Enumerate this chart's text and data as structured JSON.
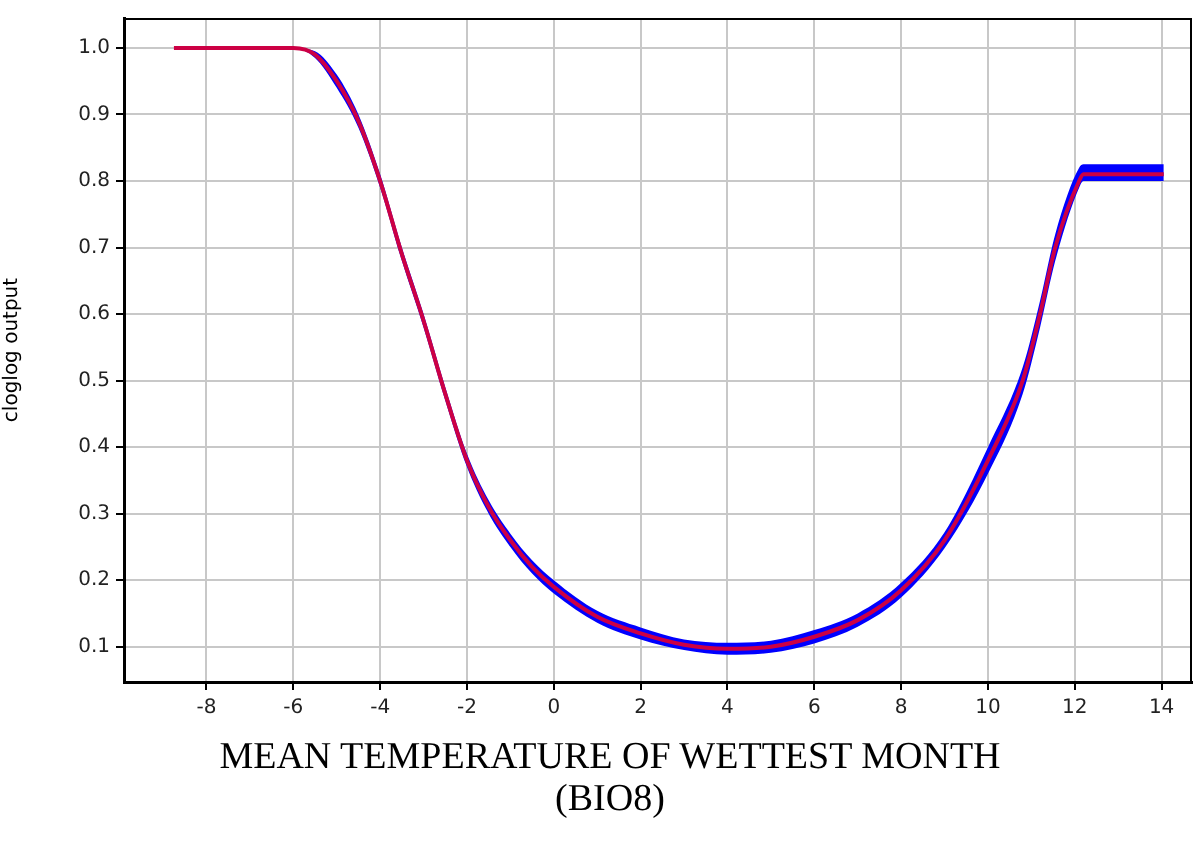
{
  "chart_data": {
    "type": "line",
    "xlabel": "MEAN TEMPERATURE OF WETTEST MONTH (BIO8)",
    "ylabel": "cloglog output",
    "xlim": [
      -9.9,
      14.7
    ],
    "ylim": [
      0.047,
      1.045
    ],
    "xticks": [
      -8,
      -6,
      -4,
      -2,
      0,
      2,
      4,
      6,
      8,
      10,
      12,
      14
    ],
    "yticks": [
      {
        "value": 0.1,
        "label": "0.1"
      },
      {
        "value": 0.2,
        "label": "0.2"
      },
      {
        "value": 0.3,
        "label": "0.3"
      },
      {
        "value": 0.4,
        "label": "0.4"
      },
      {
        "value": 0.5,
        "label": "0.5"
      },
      {
        "value": 0.6,
        "label": "0.6"
      },
      {
        "value": 0.7,
        "label": "0.7"
      },
      {
        "value": 0.8,
        "label": "0.8"
      },
      {
        "value": 0.9,
        "label": "0.9"
      },
      {
        "value": 1,
        "label": "1.0"
      }
    ],
    "grid": true,
    "legend": false,
    "marker": "none",
    "line_style": "solid",
    "series": [
      {
        "color": "#cc0044",
        "x": [
          -8.75,
          -6,
          -5.5,
          -5,
          -4.5,
          -4,
          -3.5,
          -3,
          -2.5,
          -2,
          -1.5,
          -1,
          -0.5,
          0,
          1,
          2,
          3,
          4,
          5,
          6,
          7,
          8,
          9,
          10,
          10.8,
          11.2,
          11.55,
          12.1,
          12.2,
          14.05
        ],
        "values": [
          1,
          1,
          0.99,
          0.95,
          0.89,
          0.8,
          0.69,
          0.59,
          0.48,
          0.38,
          0.31,
          0.26,
          0.22,
          0.19,
          0.145,
          0.12,
          0.103,
          0.097,
          0.1,
          0.115,
          0.14,
          0.185,
          0.26,
          0.38,
          0.5,
          0.6,
          0.7,
          0.8,
          0.81,
          0.81
        ],
        "lower": [
          1,
          1,
          0.985,
          0.94,
          0.88,
          0.79,
          0.68,
          0.58,
          0.47,
          0.37,
          0.3,
          0.25,
          0.21,
          0.18,
          0.136,
          0.111,
          0.095,
          0.088,
          0.091,
          0.105,
          0.13,
          0.174,
          0.248,
          0.36,
          0.48,
          0.58,
          0.68,
          0.79,
          0.8,
          0.8
        ],
        "upper": [
          1,
          1,
          0.995,
          0.96,
          0.9,
          0.81,
          0.7,
          0.6,
          0.49,
          0.39,
          0.32,
          0.27,
          0.23,
          0.2,
          0.154,
          0.129,
          0.111,
          0.106,
          0.109,
          0.125,
          0.15,
          0.196,
          0.272,
          0.4,
          0.52,
          0.62,
          0.72,
          0.82,
          0.825,
          0.825
        ]
      }
    ]
  }
}
